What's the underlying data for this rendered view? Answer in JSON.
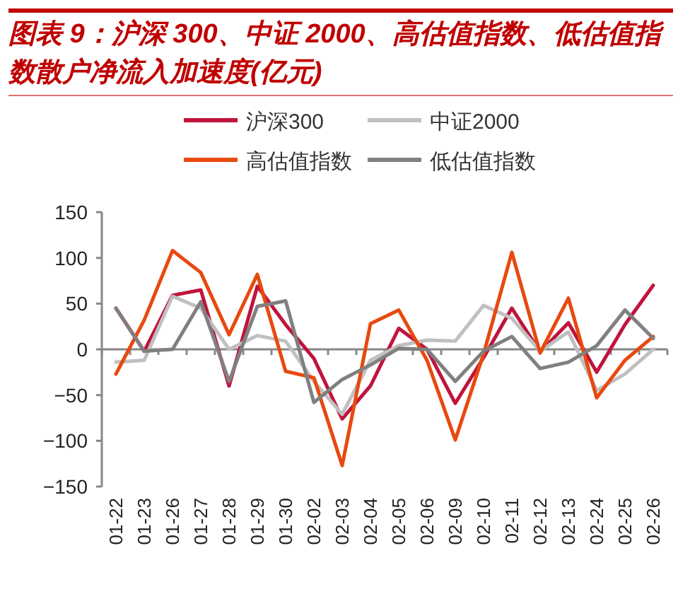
{
  "chart_data": {
    "type": "line",
    "title": "图表 9：沪深 300、中证 2000、高估值指数、低估值指数散户净流入加速度(亿元)",
    "categories": [
      "01-22",
      "01-23",
      "01-26",
      "01-27",
      "01-28",
      "01-29",
      "01-30",
      "02-02",
      "02-03",
      "02-04",
      "02-05",
      "02-06",
      "02-09",
      "02-10",
      "02-11",
      "02-12",
      "02-13",
      "02-24",
      "02-25",
      "02-26"
    ],
    "series": [
      {
        "name": "沪深300",
        "color": "#c0143c",
        "values": [
          45,
          -2,
          59,
          65,
          -40,
          69,
          27,
          -10,
          -76,
          -40,
          23,
          0,
          -59,
          -9,
          45,
          -3,
          29,
          -25,
          27,
          70
        ]
      },
      {
        "name": "中证2000",
        "color": "#c0c0c0",
        "values": [
          -14,
          -12,
          58,
          45,
          0,
          15,
          9,
          -35,
          -71,
          -12,
          4,
          10,
          9,
          48,
          34,
          -2,
          19,
          -45,
          -27,
          0
        ]
      },
      {
        "name": "高估值指数",
        "color": "#e8490f",
        "values": [
          -27,
          32,
          108,
          84,
          16,
          82,
          -24,
          -31,
          -127,
          28,
          43,
          -12,
          -99,
          -5,
          106,
          -4,
          56,
          -53,
          -12,
          14
        ]
      },
      {
        "name": "低估值指数",
        "color": "#808080",
        "values": [
          45,
          -2,
          0,
          52,
          -35,
          47,
          53,
          -58,
          -33,
          -17,
          1,
          0,
          -35,
          -2,
          14,
          -21,
          -14,
          4,
          43,
          12
        ]
      }
    ],
    "ylim": [
      -150,
      150
    ],
    "yticks": [
      -150,
      -100,
      -50,
      0,
      50,
      100,
      150
    ],
    "legend": "top"
  }
}
